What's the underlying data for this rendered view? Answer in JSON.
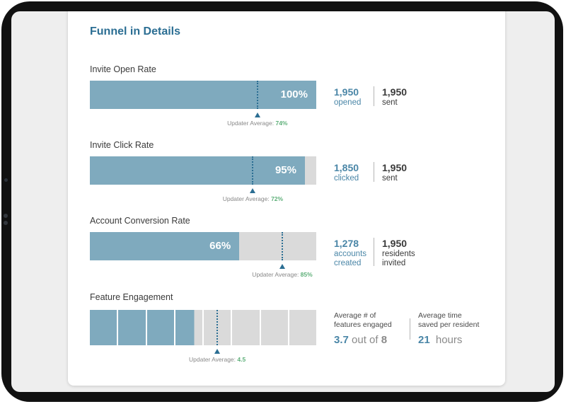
{
  "card": {
    "title": "Funnel in Details"
  },
  "metrics": [
    {
      "label": "Invite Open Rate",
      "rate": 1.0,
      "percent_label": "100%",
      "average": 0.74,
      "average_label": "Updater Average:",
      "average_value": "74%",
      "count": "1,950",
      "count_label": "opened",
      "total": "1,950",
      "total_label": "sent"
    },
    {
      "label": "Invite Click Rate",
      "rate": 0.95,
      "percent_label": "95%",
      "average": 0.72,
      "average_label": "Updater Average:",
      "average_value": "72%",
      "count": "1,850",
      "count_label": "clicked",
      "total": "1,950",
      "total_label": "sent"
    },
    {
      "label": "Account Conversion Rate",
      "rate": 0.66,
      "percent_label": "66%",
      "average": 0.85,
      "average_label": "Updater Average:",
      "average_value": "85%",
      "count": "1,278",
      "count_label": "accounts\ncreated",
      "total": "1,950",
      "total_label": "residents\ninvited"
    }
  ],
  "engagement": {
    "label": "Feature Engagement",
    "segments_total": 8,
    "value": 3.7,
    "average": 4.5,
    "average_label": "Updater Average:",
    "average_value": "4.5",
    "features_label": "Average # of\nfeatures engaged",
    "features_value": "3.7",
    "features_suffix": "out of",
    "features_total": "8",
    "time_label": "Average time\nsaved per resident",
    "time_value": "21",
    "time_unit": "hours"
  },
  "colors": {
    "accent": "#2b6e93",
    "fill": "#7faabe",
    "empty": "#dadada",
    "average_value": "#5fb07a"
  }
}
